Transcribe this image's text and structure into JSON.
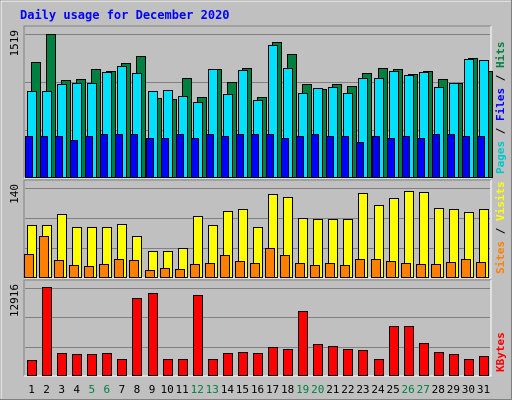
{
  "chart_data": {
    "type": "bar",
    "title": "Daily usage for December 2020",
    "days": [
      "1",
      "2",
      "3",
      "4",
      "5",
      "6",
      "7",
      "8",
      "9",
      "10",
      "11",
      "12",
      "13",
      "14",
      "15",
      "16",
      "17",
      "18",
      "19",
      "20",
      "21",
      "22",
      "23",
      "24",
      "25",
      "26",
      "27",
      "28",
      "29",
      "30",
      "31"
    ],
    "weekend_days": [
      "5",
      "6",
      "12",
      "13",
      "19",
      "20",
      "26",
      "27"
    ],
    "panels": [
      {
        "id": "pages_files_hits",
        "max_label": "1519",
        "ymax": 1519,
        "series": [
          {
            "name": "Hits",
            "color": "#008040",
            "values": [
              1220,
              1519,
              1030,
              1045,
              1145,
              1125,
              1210,
              1290,
              845,
              830,
              1060,
              855,
              1155,
              1010,
              1165,
              850,
              1430,
              1305,
              995,
              935,
              995,
              970,
              1105,
              1160,
              1155,
              1095,
              1125,
              1040,
              1000,
              1270,
              1125
            ]
          },
          {
            "name": "Files",
            "color": "#00e0ff",
            "values": [
              920,
              920,
              990,
              1005,
              1000,
              1115,
              1180,
              1110,
              920,
              930,
              870,
              800,
              1145,
              890,
              1140,
              820,
              1405,
              1160,
              895,
              950,
              960,
              900,
              1050,
              1060,
              1125,
              1090,
              1115,
              960,
              1000,
              1260,
              1240
            ]
          },
          {
            "name": "Pages",
            "color": "#0000ff",
            "values": [
              440,
              440,
              440,
              400,
              440,
              460,
              460,
              460,
              420,
              420,
              460,
              420,
              460,
              440,
              460,
              460,
              460,
              420,
              440,
              460,
              440,
              440,
              380,
              440,
              420,
              440,
              420,
              460,
              460,
              440,
              440
            ]
          }
        ],
        "label_parts": [
          {
            "text": "Pages",
            "color": "#00c8c8"
          },
          {
            "text": " / ",
            "color": "#000000"
          },
          {
            "text": "Files",
            "color": "#0000ff"
          },
          {
            "text": " / ",
            "color": "#000000"
          },
          {
            "text": "Hits",
            "color": "#008040"
          }
        ]
      },
      {
        "id": "sites_visits",
        "max_label": "140",
        "ymax": 140,
        "series": [
          {
            "name": "Visits",
            "color": "#ffff00",
            "values": [
              82,
              82,
              100,
              80,
              80,
              80,
              84,
              66,
              42,
              42,
              47,
              97,
              82,
              104,
              107,
              79,
              131,
              126,
              93,
              92,
              92,
              92,
              132,
              114,
              125,
              136,
              134,
              109,
              108,
              102,
              107
            ]
          },
          {
            "name": "Sites",
            "color": "#ff8000",
            "values": [
              38,
              66,
              28,
              20,
              19,
              22,
              30,
              28,
              12,
              15,
              14,
              22,
              24,
              35,
              27,
              24,
              46,
              36,
              24,
              20,
              24,
              20,
              29,
              30,
              27,
              24,
              22,
              22,
              25,
              29,
              25
            ]
          }
        ],
        "label_parts": [
          {
            "text": "Sites",
            "color": "#ff8000"
          },
          {
            "text": " / ",
            "color": "#000000"
          },
          {
            "text": "Visits",
            "color": "#ffff00"
          }
        ]
      },
      {
        "id": "kbytes",
        "max_label": "12916",
        "ymax": 12916,
        "series": [
          {
            "name": "KBytes",
            "color": "#ff0000",
            "values": [
              2390,
              13020,
              3445,
              3280,
              3280,
              3350,
              2550,
              11420,
              12250,
              2470,
              2470,
              11910,
              2500,
              3350,
              3530,
              3410,
              4230,
              4020,
              9540,
              4710,
              4420,
              3990,
              3850,
              2480,
              7280,
              7360,
              4810,
              3530,
              3300,
              2500,
              2910
            ]
          }
        ],
        "label_parts": [
          {
            "text": "KBytes",
            "color": "#ff0000"
          }
        ]
      }
    ]
  }
}
